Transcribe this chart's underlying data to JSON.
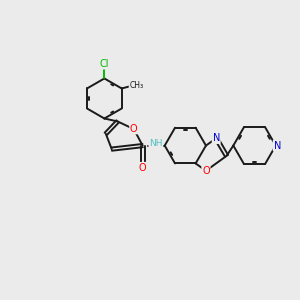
{
  "background_color": "#ebebeb",
  "bond_color": "#1a1a1a",
  "atom_colors": {
    "O": "#ff0000",
    "N": "#0000cc",
    "Cl": "#00bb00",
    "NH": "#4fc0c0",
    "C": "#1a1a1a"
  },
  "lw": 1.4,
  "fs": 7.0,
  "xlim": [
    0,
    10
  ],
  "ylim": [
    0,
    10
  ]
}
